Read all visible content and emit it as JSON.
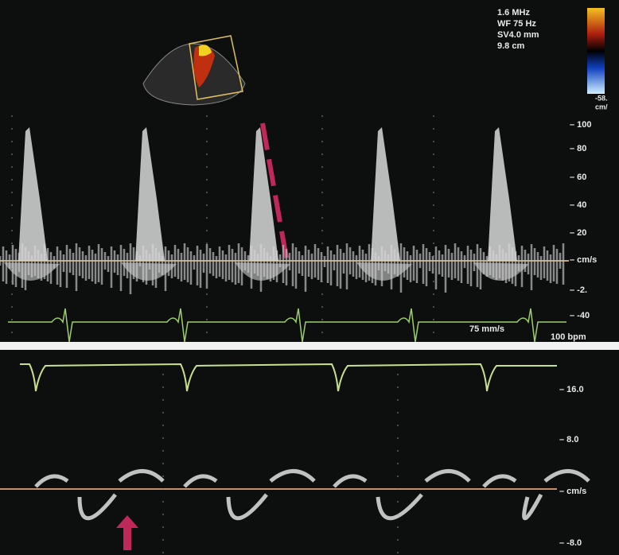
{
  "settings": {
    "frequency": "1.6 MHz",
    "wall_filter": "WF 75 Hz",
    "sample_volume": "SV4.0 mm",
    "depth": "9.8 cm"
  },
  "color_scale": {
    "low": "-58.",
    "unit": "cm/"
  },
  "top_panel": {
    "scale": [
      "– 100",
      "– 80",
      "– 60",
      "– 40",
      "– 20",
      "– cm/s",
      "– -2.",
      "– -40"
    ],
    "sweep": "75 mm/s",
    "heart_rate": "100 bpm"
  },
  "bottom_panel": {
    "scale": [
      "– 16.0",
      "– 8.0",
      "– cm/s",
      "– -8.0"
    ]
  }
}
